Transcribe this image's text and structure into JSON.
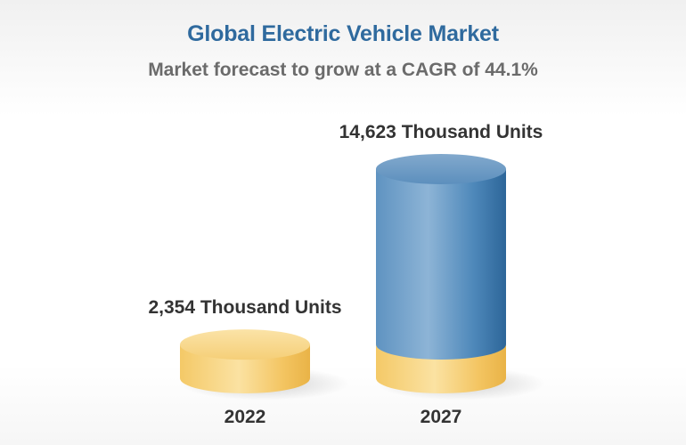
{
  "title": "Global Electric Vehicle Market",
  "subtitle": "Market forecast to grow at a CAGR of 44.1%",
  "colors": {
    "title": "#2f6a9e",
    "subtitle": "#6b6b6b",
    "gold": "#f2c158",
    "blue": "#4a86b8"
  },
  "chart_data": {
    "type": "bar",
    "categories": [
      "2022",
      "2027"
    ],
    "values": [
      2354,
      14623
    ],
    "data_labels": [
      "2,354 Thousand Units",
      "14,623 Thousand Units"
    ],
    "unit": "Thousand Units",
    "title": "Global Electric Vehicle Market",
    "subtitle": "Market forecast to grow at a CAGR of 44.1%",
    "xlabel": "",
    "ylabel": "",
    "grid": false,
    "legend": "none"
  }
}
